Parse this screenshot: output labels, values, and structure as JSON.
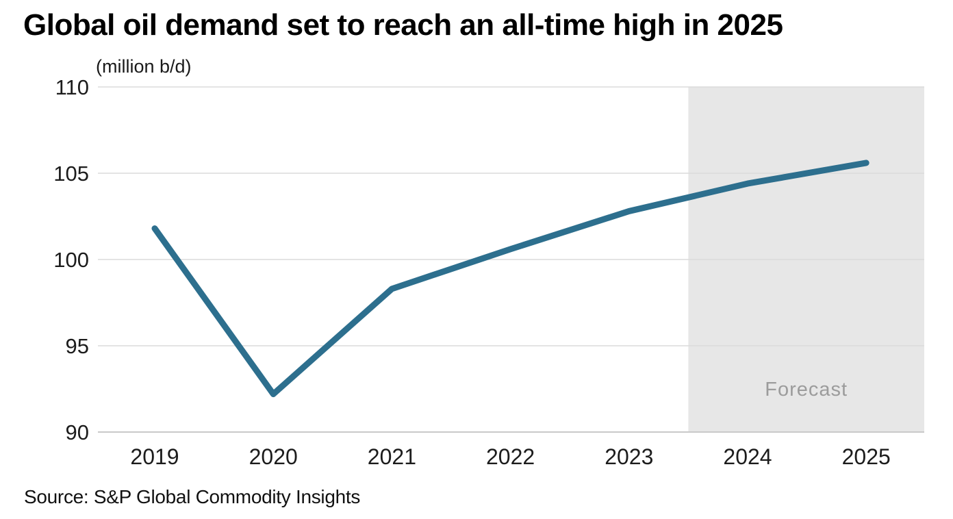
{
  "title": "Global oil demand set to reach an all-time high in 2025",
  "source": "Source: S&P Global Commodity Insights",
  "colors": {
    "line": "#2d6f8e",
    "forecast_band": "#e7e7e7",
    "gridline": "#dcdcdc",
    "axis_line": "#c9c9c9",
    "forecast_text": "#9c9c9c",
    "tick_text": "#1c1c1c"
  },
  "chart_data": {
    "type": "line",
    "title": "Global oil demand set to reach an all-time high in 2025",
    "unit": "(million b/d)",
    "x": [
      2019,
      2020,
      2021,
      2022,
      2023,
      2024,
      2025
    ],
    "x_tick_labels": [
      "2019",
      "2020",
      "2021",
      "2022",
      "2023",
      "2024",
      "2025"
    ],
    "series": [
      {
        "name": "Global oil demand",
        "values": [
          101.8,
          92.2,
          98.3,
          100.6,
          102.8,
          104.4,
          105.6
        ]
      }
    ],
    "ylim": [
      90,
      110
    ],
    "yticks": [
      90,
      95,
      100,
      105,
      110
    ],
    "grid": "horizontal",
    "forecast_region": {
      "start": 2023.5,
      "label": "Forecast"
    }
  }
}
